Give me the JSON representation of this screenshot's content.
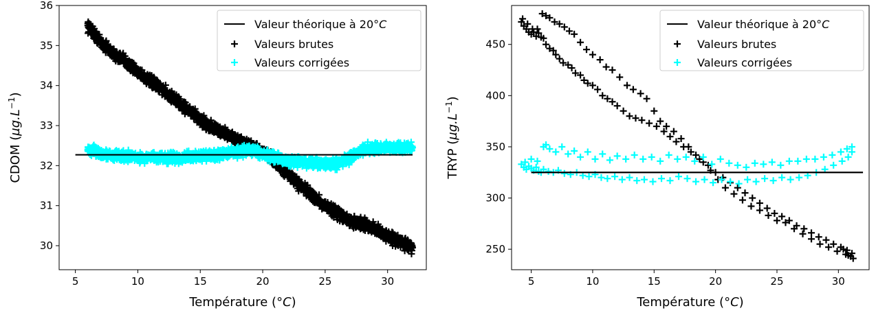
{
  "colors": {
    "raw": "#000000",
    "corrected": "#00ffff",
    "theoretical": "#000000"
  },
  "chart_data": [
    {
      "type": "scatter",
      "xlabel": "Température (°C)",
      "ylabel": "CDOM (µg.L⁻¹)",
      "xlim": [
        3.7,
        33.1
      ],
      "ylim": [
        29.4,
        36.0
      ],
      "xticks": [
        5,
        10,
        15,
        20,
        25,
        30
      ],
      "yticks": [
        30,
        31,
        32,
        33,
        34,
        35,
        36
      ],
      "legend_position": "upper right",
      "reference_line": {
        "name": "Valeur théorique à 20°C",
        "y": 32.27,
        "x_range": [
          5.0,
          32.0
        ]
      },
      "series": [
        {
          "name": "Valeurs brutes",
          "marker": "+",
          "color": "#000000",
          "x": [
            6.0,
            7.0,
            8.0,
            9.0,
            10.0,
            11.0,
            12.0,
            13.0,
            14.0,
            15.0,
            16.0,
            17.0,
            18.0,
            19.0,
            20.0,
            21.0,
            22.0,
            23.0,
            24.0,
            25.0,
            26.0,
            27.0,
            28.0,
            29.0,
            30.0,
            31.0,
            32.0
          ],
          "y": [
            35.5,
            35.1,
            34.8,
            34.6,
            34.35,
            34.1,
            33.9,
            33.65,
            33.4,
            33.15,
            32.95,
            32.8,
            32.65,
            32.5,
            32.35,
            32.1,
            31.8,
            31.5,
            31.25,
            31.0,
            30.8,
            30.6,
            30.55,
            30.4,
            30.25,
            30.1,
            29.95
          ],
          "spread": 0.2
        },
        {
          "name": "Valeurs corrigées",
          "marker": "+",
          "color": "#00ffff",
          "x": [
            6.0,
            7.0,
            8.0,
            9.0,
            10.0,
            11.0,
            12.0,
            13.0,
            14.0,
            15.0,
            16.0,
            17.0,
            18.0,
            19.0,
            20.0,
            21.0,
            22.0,
            23.0,
            24.0,
            25.0,
            26.0,
            27.0,
            28.0,
            29.0,
            30.0,
            31.0,
            32.0
          ],
          "y": [
            32.4,
            32.3,
            32.25,
            32.25,
            32.2,
            32.2,
            32.2,
            32.2,
            32.2,
            32.25,
            32.25,
            32.3,
            32.35,
            32.4,
            32.3,
            32.2,
            32.1,
            32.1,
            32.05,
            32.05,
            32.05,
            32.2,
            32.4,
            32.45,
            32.45,
            32.45,
            32.45
          ],
          "spread": 0.18
        }
      ]
    },
    {
      "type": "scatter",
      "xlabel": "Température (°C)",
      "ylabel": "TRYP (µg.L⁻¹)",
      "xlim": [
        3.4,
        32.5
      ],
      "ylim": [
        230,
        488
      ],
      "xticks": [
        5,
        10,
        15,
        20,
        25,
        30
      ],
      "yticks": [
        250,
        300,
        350,
        400,
        450
      ],
      "legend_position": "upper right",
      "reference_line": {
        "name": "Valeur théorique à 20°C",
        "y": 325,
        "x_range": [
          5.0,
          32.0
        ]
      },
      "series": [
        {
          "name": "Valeurs brutes",
          "marker": "+",
          "color": "#000000",
          "x": [
            4.2,
            4.4,
            4.6,
            4.8,
            5.0,
            5.2,
            5.4,
            5.6,
            5.8,
            6.0,
            6.2,
            6.5,
            6.8,
            7.0,
            7.3,
            7.6,
            8.0,
            8.3,
            8.6,
            9.0,
            9.3,
            9.6,
            10.0,
            10.4,
            10.8,
            11.2,
            11.6,
            12.0,
            12.5,
            13.0,
            13.5,
            14.0,
            14.6,
            15.2,
            15.8,
            16.3,
            16.8,
            17.4,
            18.0,
            18.7,
            19.4,
            20.0,
            20.6,
            21.2,
            21.8,
            22.4,
            23.0,
            23.6,
            24.2,
            24.8,
            25.4,
            26.0,
            26.6,
            27.2,
            27.8,
            28.4,
            29.0,
            29.6,
            30.2,
            30.7,
            31.1,
            4.3,
            4.7,
            5.1,
            5.5,
            5.9,
            6.2,
            6.5,
            6.9,
            7.3,
            7.7,
            8.1,
            8.5,
            9.0,
            9.5,
            10.0,
            10.6,
            11.1,
            11.6,
            12.2,
            12.8,
            13.3,
            13.9,
            14.4,
            15.0,
            15.5,
            16.0,
            16.6,
            17.2,
            17.8,
            18.4,
            19.0,
            19.6,
            20.2,
            20.8,
            21.5,
            22.2,
            22.9,
            23.6,
            24.3,
            25.0,
            25.7,
            26.4,
            27.1,
            27.8,
            28.5,
            29.2,
            29.9,
            30.6,
            31.0,
            30.8,
            30.4,
            31.2
          ],
          "y": [
            472,
            468,
            465,
            462,
            460,
            462,
            458,
            461,
            457,
            456,
            450,
            446,
            444,
            440,
            436,
            432,
            430,
            427,
            422,
            420,
            415,
            412,
            410,
            406,
            400,
            397,
            394,
            390,
            385,
            380,
            378,
            376,
            373,
            370,
            365,
            360,
            355,
            350,
            345,
            338,
            332,
            325,
            320,
            315,
            310,
            305,
            300,
            295,
            290,
            285,
            282,
            278,
            273,
            270,
            266,
            262,
            259,
            255,
            252,
            249,
            246,
            475,
            470,
            465,
            465,
            480,
            478,
            476,
            472,
            470,
            467,
            463,
            460,
            452,
            445,
            440,
            435,
            428,
            425,
            418,
            410,
            406,
            402,
            397,
            385,
            375,
            370,
            365,
            358,
            350,
            342,
            335,
            327,
            318,
            310,
            304,
            298,
            292,
            288,
            283,
            278,
            276,
            270,
            265,
            260,
            255,
            252,
            248,
            245,
            243,
            244,
            250,
            241
          ]
        },
        {
          "name": "Valeurs corrigées",
          "marker": "+",
          "color": "#00ffff",
          "x": [
            4.2,
            4.4,
            4.6,
            4.8,
            5.0,
            5.2,
            5.4,
            5.6,
            5.8,
            6.0,
            6.4,
            6.8,
            7.2,
            7.7,
            8.2,
            8.7,
            9.2,
            9.7,
            10.2,
            10.7,
            11.2,
            11.8,
            12.4,
            13.0,
            13.6,
            14.2,
            14.9,
            15.6,
            16.3,
            17.0,
            17.7,
            18.4,
            19.1,
            19.8,
            20.5,
            21.2,
            21.9,
            22.6,
            23.3,
            24.0,
            24.7,
            25.4,
            26.1,
            26.8,
            27.5,
            28.2,
            28.9,
            29.6,
            30.3,
            30.8,
            31.1,
            5.5,
            6.0,
            6.5,
            7.0,
            7.5,
            8.0,
            8.5,
            9.0,
            9.6,
            10.2,
            10.8,
            11.4,
            12.0,
            12.7,
            13.4,
            14.1,
            14.8,
            15.5,
            16.2,
            16.9,
            17.6,
            18.3,
            19.0,
            19.7,
            20.4,
            21.1,
            21.8,
            22.5,
            23.2,
            23.9,
            24.6,
            25.3,
            26.0,
            26.7,
            27.4,
            28.1,
            28.8,
            29.5,
            30.2,
            30.7,
            31.1,
            4.5,
            5.0,
            6.2
          ],
          "y": [
            333,
            330,
            328,
            331,
            329,
            327,
            330,
            326,
            325,
            328,
            326,
            325,
            327,
            324,
            323,
            325,
            322,
            321,
            323,
            320,
            319,
            321,
            318,
            320,
            317,
            318,
            316,
            319,
            317,
            321,
            319,
            316,
            318,
            315,
            318,
            316,
            314,
            318,
            316,
            319,
            317,
            320,
            318,
            320,
            322,
            325,
            328,
            332,
            336,
            340,
            345,
            336,
            350,
            348,
            345,
            350,
            343,
            346,
            340,
            345,
            338,
            343,
            337,
            341,
            338,
            342,
            338,
            340,
            336,
            342,
            338,
            340,
            336,
            340,
            333,
            338,
            334,
            332,
            330,
            334,
            333,
            335,
            332,
            336,
            336,
            338,
            338,
            340,
            342,
            345,
            348,
            350,
            335,
            338,
            352
          ]
        }
      ]
    }
  ],
  "charts": [
    {
      "ylabel_main": "CDOM (",
      "ylabel_unit": "µg.L",
      "ylabel_exp": "−1",
      "ylabel_close": ")",
      "xlabel_main": "Température (°",
      "xlabel_unit": "C",
      "xlabel_close": ")",
      "legend": {
        "line": "Valeur théorique à 20°",
        "line_unit": "C",
        "raw": "Valeurs brutes",
        "corrected": "Valeurs corrigées"
      }
    },
    {
      "ylabel_main": "TRYP (",
      "ylabel_unit": "µg.L",
      "ylabel_exp": "−1",
      "ylabel_close": ")",
      "xlabel_main": "Température (°",
      "xlabel_unit": "C",
      "xlabel_close": ")",
      "legend": {
        "line": "Valeur théorique à 20°",
        "line_unit": "C",
        "raw": "Valeurs brutes",
        "corrected": "Valeurs corrigées"
      }
    }
  ]
}
